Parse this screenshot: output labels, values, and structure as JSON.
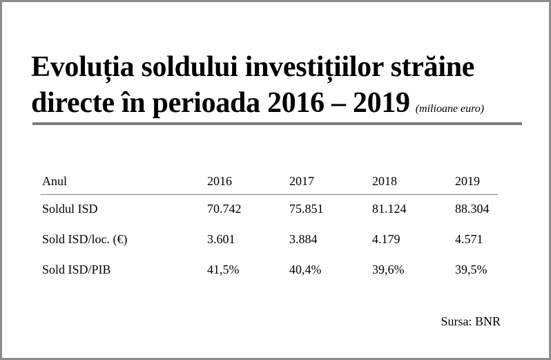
{
  "title": {
    "line1": "Evoluția soldului investițiilor străine",
    "line2": "directe în perioada 2016 – 2019",
    "unit": "(milioane euro)"
  },
  "table": {
    "header": [
      "Anul",
      "2016",
      "2017",
      "2018",
      "2019"
    ],
    "rows": [
      [
        "Soldul ISD",
        "70.742",
        "75.851",
        "81.124",
        "88.304"
      ],
      [
        "Sold ISD/loc. (€)",
        "3.601",
        "3.884",
        "4.179",
        "4.571"
      ],
      [
        "Sold ISD/PIB",
        "41,5%",
        "40,4%",
        "39,6%",
        "39,5%"
      ]
    ]
  },
  "source": "Sursa: BNR"
}
